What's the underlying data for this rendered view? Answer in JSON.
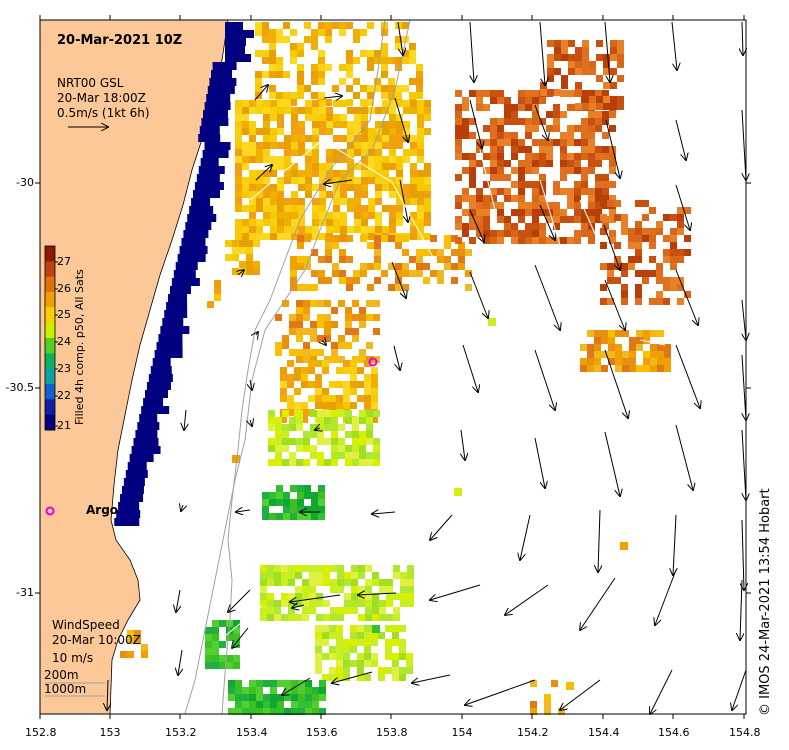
{
  "title": "20-Mar-2021 10Z",
  "current_legend": {
    "line1": "NRT00 GSL",
    "line2": "20-Mar 18:00Z",
    "line3": "0.5m/s (1kt 6h)"
  },
  "colorbar": {
    "title": "Filled 4h comp. p50, All Sats",
    "ticks": [
      "27",
      "26",
      "25",
      "24",
      "23",
      "22",
      "21"
    ]
  },
  "wind_legend": {
    "line1": "WindSpeed",
    "line2": "20-Mar 10:00Z",
    "line3": "10 m/s"
  },
  "depth_legend": {
    "line1": "200m",
    "line2": "1000m"
  },
  "argo_label": "Argo",
  "credit": "© IMOS 24-Mar-2021 13:54 Hobart",
  "x_axis": {
    "ticks": [
      "152.8",
      "153",
      "153.2",
      "153.4",
      "153.6",
      "153.8",
      "154",
      "154.2",
      "154.4",
      "154.6",
      "154.8"
    ]
  },
  "y_axis": {
    "ticks": [
      "-30",
      "-30.5",
      "-31"
    ]
  },
  "colors": {
    "land": "#fcc898",
    "cloud_mask": "#000080",
    "sst_warm": "#d86010",
    "sst_mid": "#f0b000",
    "sst_cool": "#30c030",
    "argo": "#e000e0"
  }
}
